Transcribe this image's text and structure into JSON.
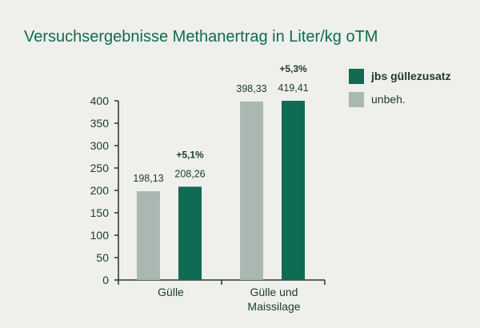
{
  "chart_data": {
    "type": "bar",
    "title": "Versuchsergebnisse Methanertrag in Liter/kg oTM",
    "categories": [
      {
        "lines": [
          "Gülle"
        ]
      },
      {
        "lines": [
          "Gülle und",
          "Maissilage"
        ]
      }
    ],
    "series": [
      {
        "name": "unbeh.",
        "color": "#a9b8b1",
        "values": [
          198.13,
          398.33
        ],
        "labels": [
          "198,13",
          "398,33"
        ]
      },
      {
        "name": "jbs güllezusatz",
        "color": "#0f6b53",
        "values": [
          208.26,
          419.41
        ],
        "labels": [
          "208,26",
          "419,41"
        ]
      }
    ],
    "annotations": [
      "+5,1%",
      "+5,3%"
    ],
    "ylim": [
      0,
      400
    ],
    "yticks": [
      0,
      50,
      100,
      150,
      200,
      250,
      300,
      350,
      400
    ],
    "grid": false,
    "legend_position": "top-right"
  }
}
